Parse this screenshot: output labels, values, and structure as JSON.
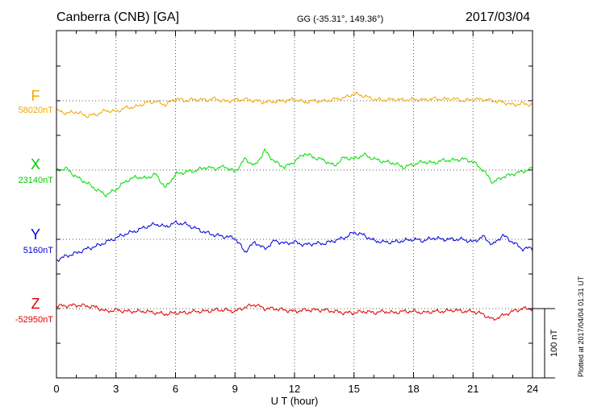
{
  "header": {
    "station": "Canberra (CNB)  [GA]",
    "coords": "GG (-35.31°, 149.36°)",
    "date": "2017/03/04"
  },
  "footer": {
    "plotted": "Plotted at 2017/04/04 01:31  UT"
  },
  "chart_data": {
    "type": "line",
    "xlabel": "U T (hour)",
    "xlim": [
      0,
      24
    ],
    "xticks": [
      0,
      3,
      6,
      9,
      12,
      15,
      18,
      21,
      24
    ],
    "ylabel": "",
    "scale_bar": {
      "label": "100 nT",
      "value": 100
    },
    "grid": true,
    "series": [
      {
        "name": "F",
        "baseline": "58020nT",
        "color": "#f0a800",
        "points": [
          [
            0,
            -14
          ],
          [
            0.5,
            -18
          ],
          [
            1,
            -16
          ],
          [
            1.5,
            -22
          ],
          [
            2,
            -20
          ],
          [
            2.5,
            -14
          ],
          [
            3,
            -16
          ],
          [
            3.5,
            -10
          ],
          [
            4,
            -9
          ],
          [
            4.5,
            -3
          ],
          [
            5,
            -1
          ],
          [
            5.5,
            -6
          ],
          [
            6,
            3
          ],
          [
            6.5,
            0
          ],
          [
            7,
            2
          ],
          [
            7.5,
            1
          ],
          [
            8,
            3
          ],
          [
            8.5,
            -1
          ],
          [
            9,
            1
          ],
          [
            9.5,
            2
          ],
          [
            10,
            0
          ],
          [
            10.5,
            -2
          ],
          [
            11,
            -1
          ],
          [
            11.5,
            0
          ],
          [
            12,
            2
          ],
          [
            12.5,
            -2
          ],
          [
            13,
            0
          ],
          [
            13.5,
            -1
          ],
          [
            14,
            2
          ],
          [
            14.5,
            4
          ],
          [
            15,
            10
          ],
          [
            15.5,
            7
          ],
          [
            16,
            2
          ],
          [
            16.5,
            1
          ],
          [
            17,
            2
          ],
          [
            17.5,
            1
          ],
          [
            18,
            2
          ],
          [
            18.5,
            1
          ],
          [
            19,
            3
          ],
          [
            19.5,
            2
          ],
          [
            20,
            3
          ],
          [
            20.5,
            0
          ],
          [
            21,
            2
          ],
          [
            21.5,
            2
          ],
          [
            22,
            0
          ],
          [
            22.5,
            -2
          ],
          [
            23,
            -6
          ],
          [
            23.5,
            -4
          ],
          [
            24,
            -6
          ]
        ]
      },
      {
        "name": "X",
        "baseline": "23140nT",
        "color": "#00dd00",
        "points": [
          [
            0,
            0
          ],
          [
            0.5,
            2
          ],
          [
            1,
            -10
          ],
          [
            1.5,
            -18
          ],
          [
            2,
            -28
          ],
          [
            2.5,
            -36
          ],
          [
            3,
            -28
          ],
          [
            3.5,
            -16
          ],
          [
            4,
            -10
          ],
          [
            4.5,
            -12
          ],
          [
            5,
            -6
          ],
          [
            5.5,
            -26
          ],
          [
            6,
            -6
          ],
          [
            6.5,
            -3
          ],
          [
            7,
            -1
          ],
          [
            7.5,
            4
          ],
          [
            8,
            2
          ],
          [
            8.5,
            5
          ],
          [
            9,
            -3
          ],
          [
            9.5,
            16
          ],
          [
            10,
            6
          ],
          [
            10.5,
            28
          ],
          [
            11,
            12
          ],
          [
            11.5,
            4
          ],
          [
            12,
            12
          ],
          [
            12.5,
            24
          ],
          [
            13,
            18
          ],
          [
            13.5,
            14
          ],
          [
            14,
            6
          ],
          [
            14.5,
            18
          ],
          [
            15,
            16
          ],
          [
            15.5,
            22
          ],
          [
            16,
            16
          ],
          [
            16.5,
            12
          ],
          [
            17,
            10
          ],
          [
            17.5,
            4
          ],
          [
            18,
            8
          ],
          [
            18.5,
            12
          ],
          [
            19,
            10
          ],
          [
            19.5,
            14
          ],
          [
            20,
            14
          ],
          [
            20.5,
            16
          ],
          [
            21,
            12
          ],
          [
            21.5,
            0
          ],
          [
            22,
            -18
          ],
          [
            22.5,
            -10
          ],
          [
            23,
            -6
          ],
          [
            23.5,
            -2
          ],
          [
            24,
            2
          ]
        ]
      },
      {
        "name": "Y",
        "baseline": "5160nT",
        "color": "#0000dd",
        "points": [
          [
            0,
            -30
          ],
          [
            0.5,
            -24
          ],
          [
            1,
            -20
          ],
          [
            1.5,
            -14
          ],
          [
            2,
            -10
          ],
          [
            2.5,
            -4
          ],
          [
            3,
            2
          ],
          [
            3.5,
            8
          ],
          [
            4,
            12
          ],
          [
            4.5,
            18
          ],
          [
            5,
            22
          ],
          [
            5.5,
            18
          ],
          [
            6,
            24
          ],
          [
            6.5,
            22
          ],
          [
            7,
            16
          ],
          [
            7.5,
            10
          ],
          [
            8,
            6
          ],
          [
            8.5,
            4
          ],
          [
            9,
            2
          ],
          [
            9.5,
            -18
          ],
          [
            10,
            -4
          ],
          [
            10.5,
            -14
          ],
          [
            11,
            -2
          ],
          [
            11.5,
            -6
          ],
          [
            12,
            -4
          ],
          [
            12.5,
            -8
          ],
          [
            13,
            -6
          ],
          [
            13.5,
            -6
          ],
          [
            14,
            -2
          ],
          [
            14.5,
            2
          ],
          [
            15,
            10
          ],
          [
            15.5,
            6
          ],
          [
            16,
            -2
          ],
          [
            16.5,
            -4
          ],
          [
            17,
            -4
          ],
          [
            17.5,
            -2
          ],
          [
            18,
            0
          ],
          [
            18.5,
            -2
          ],
          [
            19,
            2
          ],
          [
            19.5,
            0
          ],
          [
            20,
            0
          ],
          [
            20.5,
            0
          ],
          [
            21,
            -4
          ],
          [
            21.5,
            4
          ],
          [
            22,
            -8
          ],
          [
            22.5,
            6
          ],
          [
            23,
            -4
          ],
          [
            23.5,
            -14
          ],
          [
            24,
            -12
          ]
        ]
      },
      {
        "name": "Z",
        "baseline": "-52950nT",
        "color": "#dd0000",
        "points": [
          [
            0,
            4
          ],
          [
            0.5,
            4
          ],
          [
            1,
            5
          ],
          [
            1.5,
            4
          ],
          [
            2,
            2
          ],
          [
            2.5,
            -4
          ],
          [
            3,
            -2
          ],
          [
            3.5,
            -4
          ],
          [
            4,
            -4
          ],
          [
            4.5,
            -4
          ],
          [
            5,
            -6
          ],
          [
            5.5,
            -8
          ],
          [
            6,
            -6
          ],
          [
            6.5,
            -6
          ],
          [
            7,
            -4
          ],
          [
            7.5,
            -4
          ],
          [
            8,
            -2
          ],
          [
            8.5,
            -2
          ],
          [
            9,
            -4
          ],
          [
            9.5,
            2
          ],
          [
            10,
            6
          ],
          [
            10.5,
            0
          ],
          [
            11,
            0
          ],
          [
            11.5,
            -2
          ],
          [
            12,
            -4
          ],
          [
            12.5,
            -2
          ],
          [
            13,
            -2
          ],
          [
            13.5,
            -2
          ],
          [
            14,
            -4
          ],
          [
            14.5,
            -6
          ],
          [
            15,
            -6
          ],
          [
            15.5,
            -4
          ],
          [
            16,
            -6
          ],
          [
            16.5,
            -4
          ],
          [
            17,
            -6
          ],
          [
            17.5,
            -4
          ],
          [
            18,
            -4
          ],
          [
            18.5,
            -6
          ],
          [
            19,
            -4
          ],
          [
            19.5,
            -4
          ],
          [
            20,
            -2
          ],
          [
            20.5,
            -4
          ],
          [
            21,
            -4
          ],
          [
            21.5,
            -8
          ],
          [
            22,
            -16
          ],
          [
            22.5,
            -10
          ],
          [
            23,
            -4
          ],
          [
            23.5,
            0
          ],
          [
            24,
            0
          ]
        ]
      }
    ]
  }
}
